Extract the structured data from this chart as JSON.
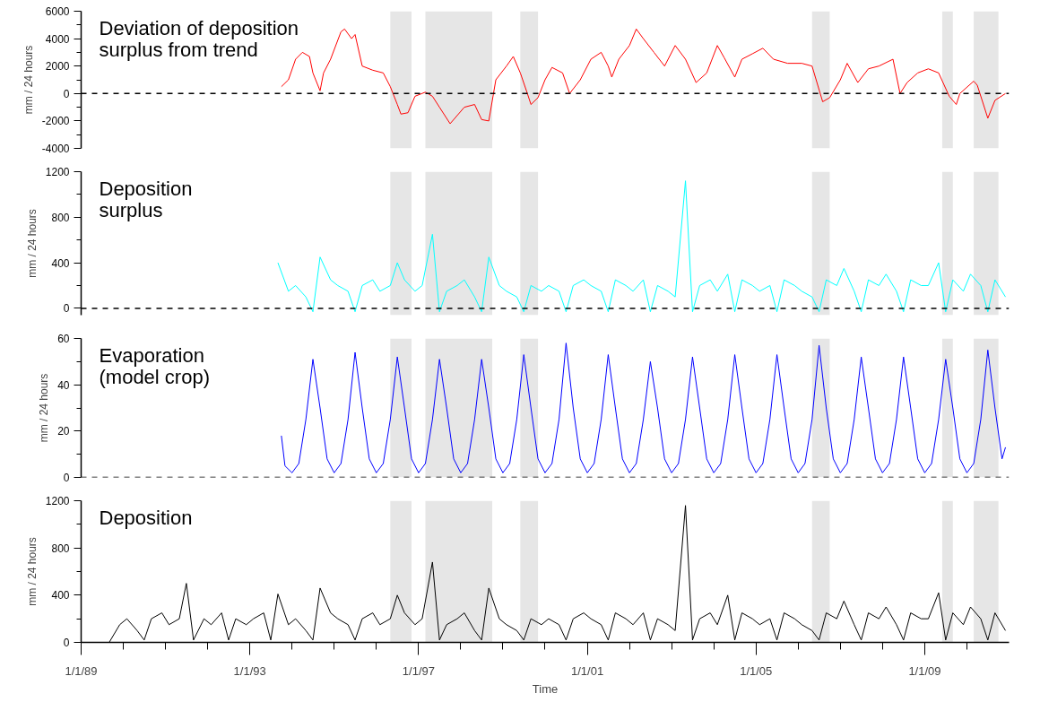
{
  "chart_data": [
    {
      "type": "line",
      "title": "Deviation of deposition\nsurplus from trend",
      "ylabel": "mm / 24 hours",
      "xlim": [
        "1989-01-01",
        "2011-01-01"
      ],
      "ylim": [
        -4000,
        6000
      ],
      "tick_labels": "y",
      "yticks": [
        -4000,
        {
          "value": -3000,
          "label": null
        },
        -2000,
        {
          "value": -1000,
          "label": null
        },
        0,
        {
          "value": 1000,
          "label": null
        },
        2000,
        {
          "value": 3000,
          "label": null
        },
        4000,
        {
          "value": 5000,
          "label": null
        },
        6000
      ],
      "ref_lines": [
        {
          "axis": "y",
          "value": 0,
          "color": "#000000",
          "line_style": "dashed"
        }
      ],
      "bands": [
        {
          "axis": "x",
          "from": "1996-05",
          "to": "1996-11",
          "color": "#e6e6e6"
        },
        {
          "axis": "x",
          "from": "1997-03",
          "to": "1998-10",
          "color": "#e6e6e6"
        },
        {
          "axis": "x",
          "from": "1999-06",
          "to": "1999-11",
          "color": "#e6e6e6"
        },
        {
          "axis": "x",
          "from": "2006-05",
          "to": "2006-10",
          "color": "#e6e6e6"
        },
        {
          "axis": "x",
          "from": "2009-06",
          "to": "2009-09",
          "color": "#e6e6e6"
        },
        {
          "axis": "x",
          "from": "2010-03",
          "to": "2010-10",
          "color": "#e6e6e6"
        }
      ],
      "series": [
        {
          "color": "#ff0000",
          "x": [
            "1993-10",
            "1993-12",
            "1994-02",
            "1994-04",
            "1994-06",
            "1994-07",
            "1994-09",
            "1994-10",
            "1994-12",
            "1995-03",
            "1995-04",
            "1995-06",
            "1995-07",
            "1995-09",
            "1995-12",
            "1996-03",
            "1996-05",
            "1996-07",
            "1996-08",
            "1996-10",
            "1996-12",
            "1997-03",
            "1997-05",
            "1997-07",
            "1997-10",
            "1998-02",
            "1998-05",
            "1998-07",
            "1998-09",
            "1998-11",
            "1999-02",
            "1999-04",
            "1999-06",
            "1999-08",
            "1999-09",
            "1999-11",
            "2000-01",
            "2000-03",
            "2000-06",
            "2000-08",
            "2000-11",
            "2001-02",
            "2001-05",
            "2001-07",
            "2001-08",
            "2001-10",
            "2002-01",
            "2002-03",
            "2002-05",
            "2002-08",
            "2002-11",
            "2003-02",
            "2003-05",
            "2003-08",
            "2003-11",
            "2004-02",
            "2004-04",
            "2004-07",
            "2004-09",
            "2004-12",
            "2005-03",
            "2005-06",
            "2005-10",
            "2006-02",
            "2006-05",
            "2006-08",
            "2006-10",
            "2007-01",
            "2007-03",
            "2007-06",
            "2007-09",
            "2007-12",
            "2008-04",
            "2008-06",
            "2008-08",
            "2008-11",
            "2009-02",
            "2009-05",
            "2009-08",
            "2009-10",
            "2009-11",
            "2010-03",
            "2010-04",
            "2010-07",
            "2010-09",
            "2010-12"
          ],
          "values": [
            500,
            1000,
            2500,
            3000,
            2700,
            1500,
            200,
            1500,
            2500,
            4500,
            4700,
            4000,
            4300,
            2000,
            1700,
            1500,
            500,
            -800,
            -1500,
            -1400,
            -200,
            100,
            -200,
            -1000,
            -2200,
            -1000,
            -800,
            -1900,
            -2000,
            1000,
            2000,
            2700,
            1500,
            0,
            -800,
            -300,
            1000,
            1900,
            1500,
            0,
            1000,
            2500,
            3000,
            2000,
            1200,
            2500,
            3500,
            4700,
            4000,
            3000,
            2000,
            3500,
            2500,
            800,
            1500,
            3500,
            2600,
            1200,
            2500,
            2900,
            3300,
            2500,
            2200,
            2200,
            2000,
            -600,
            -300,
            1000,
            2200,
            800,
            1800,
            2000,
            2500,
            0,
            800,
            1500,
            1800,
            1500,
            -200,
            -800,
            0,
            900,
            600,
            -1800,
            -500,
            0
          ]
        }
      ]
    },
    {
      "type": "line",
      "title": "Deposition\nsurplus",
      "ylabel": "mm / 24 hours",
      "xlim": [
        "1989-01-01",
        "2011-01-01"
      ],
      "ylim": [
        -60,
        1200
      ],
      "tick_labels": "y",
      "yticks": [
        0,
        {
          "value": 200,
          "label": null
        },
        400,
        {
          "value": 600,
          "label": null
        },
        800,
        {
          "value": 1000,
          "label": null
        },
        1200
      ],
      "ref_lines": [
        {
          "axis": "y",
          "value": 0,
          "color": "#000000",
          "line_style": "dashed"
        }
      ],
      "bands": [
        {
          "axis": "x",
          "from": "1996-05",
          "to": "1996-11",
          "color": "#e6e6e6"
        },
        {
          "axis": "x",
          "from": "1997-03",
          "to": "1998-10",
          "color": "#e6e6e6"
        },
        {
          "axis": "x",
          "from": "1999-06",
          "to": "1999-11",
          "color": "#e6e6e6"
        },
        {
          "axis": "x",
          "from": "2006-05",
          "to": "2006-10",
          "color": "#e6e6e6"
        },
        {
          "axis": "x",
          "from": "2009-06",
          "to": "2009-09",
          "color": "#e6e6e6"
        },
        {
          "axis": "x",
          "from": "2010-03",
          "to": "2010-10",
          "color": "#e6e6e6"
        }
      ],
      "series": [
        {
          "color": "#00ffff",
          "x": [
            "1993-09",
            "1993-12",
            "1994-02",
            "1994-05",
            "1994-07",
            "1994-09",
            "1994-12",
            "1995-02",
            "1995-05",
            "1995-07",
            "1995-09",
            "1995-12",
            "1996-02",
            "1996-05",
            "1996-07",
            "1996-09",
            "1996-12",
            "1997-02",
            "1997-05",
            "1997-07",
            "1997-09",
            "1997-12",
            "1998-02",
            "1998-05",
            "1998-07",
            "1998-09",
            "1998-12",
            "1999-02",
            "1999-05",
            "1999-07",
            "1999-09",
            "1999-12",
            "2000-02",
            "2000-05",
            "2000-07",
            "2000-09",
            "2000-12",
            "2001-02",
            "2001-05",
            "2001-07",
            "2001-09",
            "2001-12",
            "2002-02",
            "2002-05",
            "2002-07",
            "2002-09",
            "2002-12",
            "2003-02",
            "2003-05",
            "2003-07",
            "2003-09",
            "2003-12",
            "2004-02",
            "2004-05",
            "2004-07",
            "2004-09",
            "2004-12",
            "2005-02",
            "2005-05",
            "2005-07",
            "2005-09",
            "2005-12",
            "2006-02",
            "2006-05",
            "2006-07",
            "2006-09",
            "2006-12",
            "2007-02",
            "2007-05",
            "2007-07",
            "2007-09",
            "2007-12",
            "2008-02",
            "2008-05",
            "2008-07",
            "2008-09",
            "2008-12",
            "2009-02",
            "2009-05",
            "2009-07",
            "2009-09",
            "2009-12",
            "2010-02",
            "2010-05",
            "2010-07",
            "2010-09",
            "2010-12"
          ],
          "values": [
            400,
            150,
            200,
            100,
            -30,
            450,
            250,
            200,
            150,
            -30,
            200,
            250,
            150,
            200,
            400,
            250,
            150,
            200,
            650,
            -30,
            150,
            200,
            250,
            100,
            -30,
            450,
            200,
            150,
            100,
            -30,
            200,
            150,
            200,
            150,
            -30,
            200,
            250,
            200,
            150,
            -30,
            250,
            200,
            150,
            250,
            -30,
            200,
            150,
            100,
            1120,
            -30,
            200,
            250,
            150,
            300,
            -30,
            250,
            200,
            150,
            200,
            -30,
            250,
            200,
            150,
            100,
            -30,
            250,
            200,
            350,
            150,
            -30,
            250,
            200,
            300,
            150,
            -30,
            250,
            200,
            200,
            400,
            -30,
            250,
            150,
            300,
            200,
            -30,
            250,
            100
          ]
        }
      ]
    },
    {
      "type": "line",
      "title": "Evaporation\n(model crop)",
      "ylabel": "mm / 24 hours",
      "xlim": [
        "1989-01-01",
        "2011-01-01"
      ],
      "ylim": [
        0,
        60
      ],
      "tick_labels": "y",
      "yticks": [
        0,
        {
          "value": 10,
          "label": null
        },
        20,
        {
          "value": 30,
          "label": null
        },
        40,
        {
          "value": 50,
          "label": null
        },
        60
      ],
      "ref_lines": [
        {
          "axis": "y",
          "value": 0,
          "color": "#000000",
          "line_style": "dashed"
        }
      ],
      "bands": [
        {
          "axis": "x",
          "from": "1996-05",
          "to": "1996-11",
          "color": "#e6e6e6"
        },
        {
          "axis": "x",
          "from": "1997-03",
          "to": "1998-10",
          "color": "#e6e6e6"
        },
        {
          "axis": "x",
          "from": "1999-06",
          "to": "1999-11",
          "color": "#e6e6e6"
        },
        {
          "axis": "x",
          "from": "2006-05",
          "to": "2006-10",
          "color": "#e6e6e6"
        },
        {
          "axis": "x",
          "from": "2009-06",
          "to": "2009-09",
          "color": "#e6e6e6"
        },
        {
          "axis": "x",
          "from": "2010-03",
          "to": "2010-10",
          "color": "#e6e6e6"
        }
      ],
      "series": [
        {
          "color": "#0000ff",
          "x": [
            "1993-10",
            "1993-11",
            "1994-01",
            "1994-03",
            "1994-05",
            "1994-07",
            "1994-09",
            "1994-11",
            "1995-01",
            "1995-03",
            "1995-05",
            "1995-07",
            "1995-09",
            "1995-11",
            "1996-01",
            "1996-03",
            "1996-05",
            "1996-07",
            "1996-09",
            "1996-11",
            "1997-01",
            "1997-03",
            "1997-05",
            "1997-07",
            "1997-09",
            "1997-11",
            "1998-01",
            "1998-03",
            "1998-05",
            "1998-07",
            "1998-09",
            "1998-11",
            "1999-01",
            "1999-03",
            "1999-05",
            "1999-07",
            "1999-09",
            "1999-11",
            "2000-01",
            "2000-03",
            "2000-05",
            "2000-07",
            "2000-09",
            "2000-11",
            "2001-01",
            "2001-03",
            "2001-05",
            "2001-07",
            "2001-09",
            "2001-11",
            "2002-01",
            "2002-03",
            "2002-05",
            "2002-07",
            "2002-09",
            "2002-11",
            "2003-01",
            "2003-03",
            "2003-05",
            "2003-07",
            "2003-09",
            "2003-11",
            "2004-01",
            "2004-03",
            "2004-05",
            "2004-07",
            "2004-09",
            "2004-11",
            "2005-01",
            "2005-03",
            "2005-05",
            "2005-07",
            "2005-09",
            "2005-11",
            "2006-01",
            "2006-03",
            "2006-05",
            "2006-07",
            "2006-09",
            "2006-11",
            "2007-01",
            "2007-03",
            "2007-05",
            "2007-07",
            "2007-09",
            "2007-11",
            "2008-01",
            "2008-03",
            "2008-05",
            "2008-07",
            "2008-09",
            "2008-11",
            "2009-01",
            "2009-03",
            "2009-05",
            "2009-07",
            "2009-09",
            "2009-11",
            "2010-01",
            "2010-03",
            "2010-05",
            "2010-07",
            "2010-09",
            "2010-11",
            "2010-12"
          ],
          "values": [
            18,
            5,
            2,
            6,
            25,
            51,
            30,
            8,
            2,
            6,
            25,
            54,
            30,
            8,
            2,
            6,
            25,
            52,
            30,
            8,
            2,
            6,
            25,
            51,
            30,
            8,
            2,
            6,
            25,
            51,
            30,
            8,
            2,
            6,
            25,
            53,
            30,
            8,
            2,
            6,
            25,
            58,
            30,
            8,
            2,
            6,
            25,
            53,
            30,
            8,
            2,
            6,
            25,
            50,
            30,
            8,
            2,
            6,
            25,
            52,
            30,
            8,
            2,
            6,
            25,
            53,
            30,
            8,
            2,
            6,
            25,
            53,
            30,
            8,
            2,
            6,
            25,
            57,
            30,
            8,
            2,
            6,
            25,
            52,
            30,
            8,
            2,
            6,
            25,
            52,
            30,
            8,
            2,
            6,
            25,
            51,
            30,
            8,
            2,
            6,
            25,
            55,
            30,
            8,
            13
          ]
        }
      ]
    },
    {
      "type": "line",
      "title": "Deposition",
      "ylabel": "mm / 24 hours",
      "xlabel": "Time",
      "xlim": [
        "1989-01-01",
        "2011-01-01"
      ],
      "ylim": [
        0,
        1200
      ],
      "xticks": [
        {
          "value": "1989-01-01",
          "label": "1/1/89"
        },
        {
          "value": "1990-01-01",
          "label": null
        },
        {
          "value": "1991-01-01",
          "label": null
        },
        {
          "value": "1992-01-01",
          "label": null
        },
        {
          "value": "1993-01-01",
          "label": "1/1/93"
        },
        {
          "value": "1994-01-01",
          "label": null
        },
        {
          "value": "1995-01-01",
          "label": null
        },
        {
          "value": "1996-01-01",
          "label": null
        },
        {
          "value": "1997-01-01",
          "label": "1/1/97"
        },
        {
          "value": "1998-01-01",
          "label": null
        },
        {
          "value": "1999-01-01",
          "label": null
        },
        {
          "value": "2000-01-01",
          "label": null
        },
        {
          "value": "2001-01-01",
          "label": "1/1/01"
        },
        {
          "value": "2002-01-01",
          "label": null
        },
        {
          "value": "2003-01-01",
          "label": null
        },
        {
          "value": "2004-01-01",
          "label": null
        },
        {
          "value": "2005-01-01",
          "label": "1/1/05"
        },
        {
          "value": "2006-01-01",
          "label": null
        },
        {
          "value": "2007-01-01",
          "label": null
        },
        {
          "value": "2008-01-01",
          "label": null
        },
        {
          "value": "2009-01-01",
          "label": "1/1/09"
        },
        {
          "value": "2010-01-01",
          "label": null
        }
      ],
      "yticks": [
        0,
        {
          "value": 200,
          "label": null
        },
        400,
        {
          "value": 600,
          "label": null
        },
        800,
        {
          "value": 1000,
          "label": null
        },
        1200
      ],
      "bands": [
        {
          "axis": "x",
          "from": "1996-05",
          "to": "1996-11",
          "color": "#e6e6e6"
        },
        {
          "axis": "x",
          "from": "1997-03",
          "to": "1998-10",
          "color": "#e6e6e6"
        },
        {
          "axis": "x",
          "from": "1999-06",
          "to": "1999-11",
          "color": "#e6e6e6"
        },
        {
          "axis": "x",
          "from": "2006-05",
          "to": "2006-10",
          "color": "#e6e6e6"
        },
        {
          "axis": "x",
          "from": "2009-06",
          "to": "2009-09",
          "color": "#e6e6e6"
        },
        {
          "axis": "x",
          "from": "2010-03",
          "to": "2010-10",
          "color": "#e6e6e6"
        }
      ],
      "series": [
        {
          "color": "#000000",
          "x": [
            "1989-01",
            "1989-09",
            "1989-12",
            "1990-02",
            "1990-05",
            "1990-07",
            "1990-09",
            "1990-12",
            "1991-02",
            "1991-05",
            "1991-07",
            "1991-09",
            "1991-12",
            "1992-02",
            "1992-05",
            "1992-07",
            "1992-09",
            "1992-12",
            "1993-02",
            "1993-05",
            "1993-07",
            "1993-09",
            "1993-12",
            "1994-02",
            "1994-05",
            "1994-07",
            "1994-09",
            "1994-12",
            "1995-02",
            "1995-05",
            "1995-07",
            "1995-09",
            "1995-12",
            "1996-02",
            "1996-05",
            "1996-07",
            "1996-09",
            "1996-12",
            "1997-02",
            "1997-05",
            "1997-07",
            "1997-09",
            "1997-12",
            "1998-02",
            "1998-05",
            "1998-07",
            "1998-09",
            "1998-12",
            "1999-02",
            "1999-05",
            "1999-07",
            "1999-09",
            "1999-12",
            "2000-02",
            "2000-05",
            "2000-07",
            "2000-09",
            "2000-12",
            "2001-02",
            "2001-05",
            "2001-07",
            "2001-09",
            "2001-12",
            "2002-02",
            "2002-05",
            "2002-07",
            "2002-09",
            "2002-12",
            "2003-02",
            "2003-05",
            "2003-07",
            "2003-09",
            "2003-12",
            "2004-02",
            "2004-05",
            "2004-07",
            "2004-09",
            "2004-12",
            "2005-02",
            "2005-05",
            "2005-07",
            "2005-09",
            "2005-12",
            "2006-02",
            "2006-05",
            "2006-07",
            "2006-09",
            "2006-12",
            "2007-02",
            "2007-05",
            "2007-07",
            "2007-09",
            "2007-12",
            "2008-02",
            "2008-05",
            "2008-07",
            "2008-09",
            "2008-12",
            "2009-02",
            "2009-05",
            "2009-07",
            "2009-09",
            "2009-12",
            "2010-02",
            "2010-05",
            "2010-07",
            "2010-09",
            "2010-12"
          ],
          "values": [
            0,
            0,
            150,
            200,
            100,
            20,
            200,
            250,
            150,
            200,
            500,
            20,
            200,
            150,
            250,
            20,
            200,
            150,
            200,
            250,
            20,
            410,
            150,
            200,
            100,
            20,
            460,
            250,
            200,
            150,
            20,
            200,
            250,
            150,
            200,
            400,
            250,
            150,
            200,
            680,
            20,
            150,
            200,
            250,
            100,
            20,
            460,
            200,
            150,
            100,
            20,
            200,
            150,
            200,
            150,
            20,
            200,
            250,
            200,
            150,
            20,
            250,
            200,
            150,
            250,
            20,
            200,
            150,
            100,
            1160,
            20,
            200,
            250,
            150,
            400,
            20,
            250,
            200,
            150,
            200,
            20,
            250,
            200,
            150,
            100,
            20,
            250,
            200,
            350,
            150,
            20,
            250,
            200,
            300,
            150,
            20,
            250,
            200,
            200,
            420,
            20,
            250,
            150,
            300,
            200,
            20,
            250,
            100
          ]
        }
      ]
    }
  ]
}
